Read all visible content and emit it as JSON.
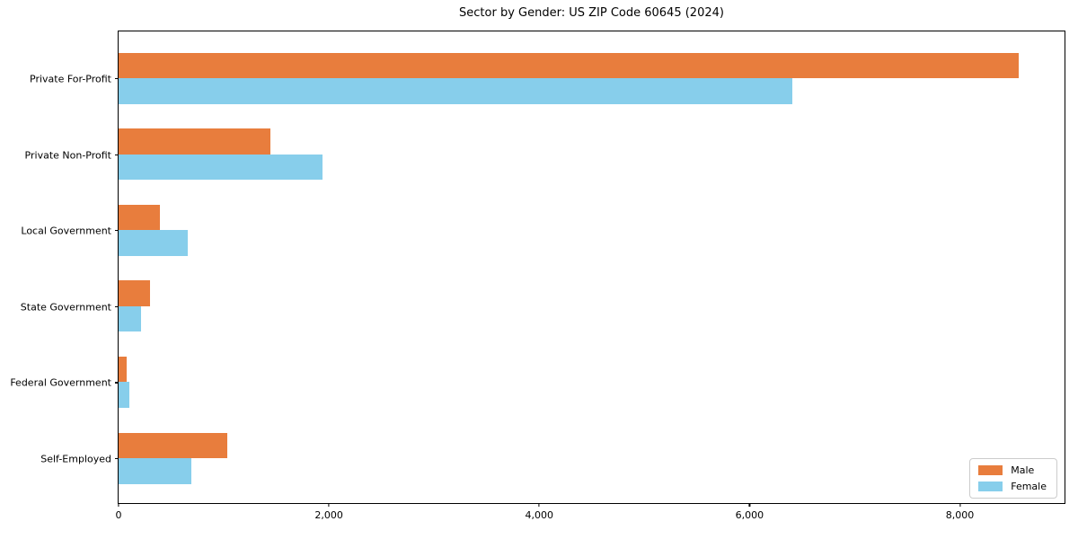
{
  "chart_data": {
    "type": "bar",
    "orientation": "horizontal",
    "title": "Sector by Gender: US ZIP Code 60645 (2024)",
    "categories": [
      "Private For-Profit",
      "Private Non-Profit",
      "Local Government",
      "State Government",
      "Federal Government",
      "Self-Employed"
    ],
    "series": [
      {
        "name": "Male",
        "color": "#E87D3D",
        "values": [
          8560,
          1445,
          390,
          300,
          80,
          1030
        ]
      },
      {
        "name": "Female",
        "color": "#87CEEB",
        "values": [
          6410,
          1940,
          655,
          215,
          105,
          690
        ]
      }
    ],
    "xlabel": "",
    "ylabel": "",
    "xlim": [
      0,
      8995
    ],
    "xticks": [
      0,
      2000,
      4000,
      6000,
      8000
    ],
    "xtick_labels": [
      "0",
      "2,000",
      "4,000",
      "6,000",
      "8,000"
    ],
    "grid": false,
    "legend": {
      "position": "lower right",
      "entries": [
        "Male",
        "Female"
      ]
    }
  }
}
